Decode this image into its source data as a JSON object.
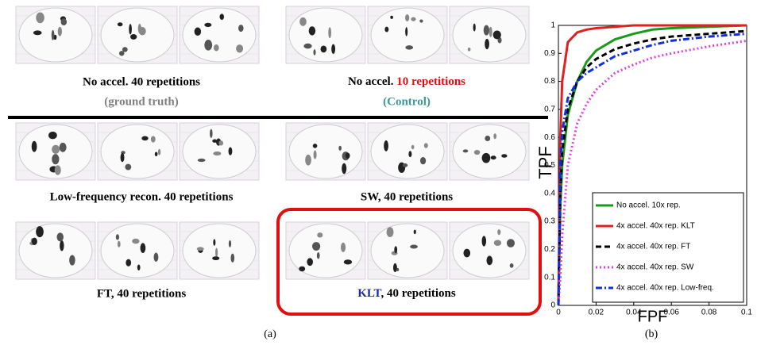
{
  "panel_a": {
    "ground_truth": {
      "title": "No accel. 40 repetitions",
      "note": "(ground truth)"
    },
    "control": {
      "prefix": "No accel. ",
      "highlight": "10 repetitions",
      "note": "(Control)"
    },
    "low_freq": {
      "title": "Low-frequency recon. 40 repetitions"
    },
    "sw": {
      "title": "SW, 40 repetitions"
    },
    "ft": {
      "title": "FT, 40 repetitions"
    },
    "klt": {
      "highlight": "KLT",
      "suffix": ", 40 repetitions"
    },
    "label": "(a)"
  },
  "panel_b_label": "(b)",
  "chart_data": {
    "type": "line",
    "xlabel": "FPF",
    "ylabel": "TPF",
    "x": [
      0,
      0.001,
      0.002,
      0.005,
      0.01,
      0.015,
      0.02,
      0.03,
      0.04,
      0.05,
      0.06,
      0.08,
      0.1
    ],
    "series": [
      {
        "name": "No accel. 10x rep.",
        "color": "#1a9a1a",
        "style": "solid",
        "values": [
          0,
          0.35,
          0.5,
          0.68,
          0.8,
          0.87,
          0.91,
          0.95,
          0.97,
          0.985,
          0.99,
          0.995,
          1
        ]
      },
      {
        "name": "4x accel. 40x rep. KLT",
        "color": "#e02020",
        "style": "solid",
        "values": [
          0,
          0.6,
          0.8,
          0.94,
          0.975,
          0.985,
          0.99,
          0.995,
          1,
          1,
          1,
          1,
          1
        ]
      },
      {
        "name": "4x accel. 40x rep. FT",
        "color": "#000000",
        "style": "dashed",
        "values": [
          0,
          0.4,
          0.55,
          0.7,
          0.8,
          0.85,
          0.88,
          0.915,
          0.935,
          0.95,
          0.96,
          0.97,
          0.98
        ]
      },
      {
        "name": "4x accel. 40x rep. SW",
        "color": "#e040e0",
        "style": "dotted",
        "values": [
          0,
          0.1,
          0.25,
          0.5,
          0.65,
          0.72,
          0.77,
          0.83,
          0.86,
          0.885,
          0.9,
          0.925,
          0.945
        ]
      },
      {
        "name": "4x accel. 40x rep. Low-freq.",
        "color": "#1030e0",
        "style": "dashdot",
        "values": [
          0,
          0.5,
          0.62,
          0.74,
          0.8,
          0.83,
          0.85,
          0.89,
          0.91,
          0.93,
          0.945,
          0.96,
          0.97
        ]
      }
    ],
    "xlim": [
      0,
      0.1
    ],
    "ylim": [
      0,
      1
    ],
    "xticks": [
      0,
      0.02,
      0.04,
      0.06,
      0.08,
      0.1
    ],
    "yticks": [
      0,
      0.1,
      0.2,
      0.3,
      0.4,
      0.5,
      0.6,
      0.7,
      0.8,
      0.9,
      1
    ],
    "legend": "lower right"
  }
}
